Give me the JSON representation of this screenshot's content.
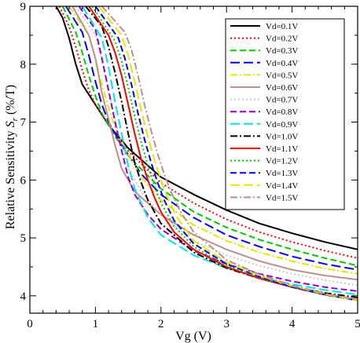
{
  "chart_data": {
    "type": "line",
    "title": "",
    "xlabel": "Vg (V)",
    "ylabel_prefix": "Relative Sensitivity ",
    "ylabel_symbol": "S",
    "ylabel_subscript": "r",
    "ylabel_suffix": " (%/T)",
    "xlim": [
      0,
      5
    ],
    "ylim": [
      3.7,
      9
    ],
    "x_ticks": [
      0,
      1,
      2,
      3,
      4,
      5
    ],
    "y_ticks": [
      4,
      5,
      6,
      7,
      8,
      9
    ],
    "grid": false,
    "legend_position": "top-right",
    "series": [
      {
        "name": "Vd=0.1V",
        "color": "#000000",
        "dash": "solid",
        "x": [
          0.4,
          0.5,
          0.6,
          0.7,
          0.8,
          1.0,
          1.2,
          1.5,
          2.0,
          2.5,
          3.0,
          3.5,
          4.0,
          4.5,
          5.0
        ],
        "y": [
          9.0,
          8.8,
          8.45,
          8.0,
          7.65,
          7.3,
          6.95,
          6.55,
          6.05,
          5.75,
          5.48,
          5.25,
          5.08,
          4.93,
          4.8
        ]
      },
      {
        "name": "Vd=0.2V",
        "color": "#ff0000",
        "dash": "dot",
        "x": [
          0.45,
          0.6,
          0.7,
          0.8,
          0.9,
          1.0,
          1.2,
          1.5,
          2.0,
          2.5,
          3.0,
          3.5,
          4.0,
          4.5,
          5.0
        ],
        "y": [
          9.0,
          8.65,
          8.3,
          7.9,
          7.55,
          7.3,
          6.95,
          6.5,
          5.95,
          5.6,
          5.32,
          5.1,
          4.93,
          4.78,
          4.65
        ]
      },
      {
        "name": "Vd=0.3V",
        "color": "#00cc00",
        "dash": "dash",
        "x": [
          0.5,
          0.7,
          0.8,
          0.9,
          1.0,
          1.1,
          1.3,
          1.6,
          2.0,
          2.5,
          3.0,
          3.5,
          4.0,
          4.5,
          5.0
        ],
        "y": [
          9.0,
          8.55,
          8.2,
          7.8,
          7.45,
          7.15,
          6.75,
          6.3,
          5.85,
          5.45,
          5.18,
          4.97,
          4.8,
          4.65,
          4.52
        ]
      },
      {
        "name": "Vd=0.4V",
        "color": "#0000ff",
        "dash": "longdash",
        "x": [
          0.55,
          0.8,
          0.9,
          1.0,
          1.1,
          1.2,
          1.4,
          1.7,
          2.0,
          2.5,
          3.0,
          3.5,
          4.0,
          4.5,
          5.0
        ],
        "y": [
          9.0,
          8.55,
          8.15,
          7.7,
          7.3,
          7.0,
          6.6,
          6.1,
          5.75,
          5.35,
          5.05,
          4.85,
          4.68,
          4.55,
          4.45
        ]
      },
      {
        "name": "Vd=0.5V",
        "color": "#e6e600",
        "dash": "dashdot",
        "x": [
          0.6,
          0.9,
          1.0,
          1.1,
          1.2,
          1.3,
          1.5,
          1.7,
          2.0,
          2.5,
          3.0,
          3.5,
          4.0,
          4.5,
          5.0
        ],
        "y": [
          9.0,
          8.5,
          8.1,
          7.65,
          7.25,
          6.9,
          6.45,
          6.05,
          5.65,
          5.22,
          4.95,
          4.75,
          4.6,
          4.47,
          4.38
        ]
      },
      {
        "name": "Vd=0.6V",
        "color": "#bc8f8f",
        "dash": "solid",
        "x": [
          0.65,
          0.9,
          1.0,
          1.05,
          1.1,
          1.2,
          1.3,
          1.4,
          1.6,
          2.0,
          2.5,
          3.0,
          3.5,
          4.0,
          4.5,
          5.0
        ],
        "y": [
          9.0,
          8.5,
          8.1,
          7.8,
          7.5,
          7.05,
          6.6,
          6.2,
          5.8,
          5.4,
          5.05,
          4.8,
          4.6,
          4.45,
          4.35,
          4.28
        ]
      },
      {
        "name": "Vd=0.7V",
        "color": "#c8c8c8",
        "dash": "dot",
        "x": [
          0.7,
          1.0,
          1.1,
          1.2,
          1.3,
          1.4,
          1.5,
          1.7,
          2.0,
          2.5,
          3.0,
          3.5,
          4.0,
          4.5,
          5.0
        ],
        "y": [
          9.0,
          8.5,
          8.05,
          7.55,
          7.05,
          6.6,
          6.2,
          5.8,
          5.4,
          4.95,
          4.7,
          4.52,
          4.38,
          4.27,
          4.18
        ]
      },
      {
        "name": "Vd=0.8V",
        "color": "#9400d3",
        "dash": "dash",
        "x": [
          0.75,
          1.0,
          1.1,
          1.2,
          1.3,
          1.4,
          1.5,
          1.6,
          1.8,
          2.0,
          2.5,
          3.0,
          3.5,
          4.0,
          4.5,
          5.0
        ],
        "y": [
          9.0,
          8.6,
          8.1,
          7.55,
          7.0,
          6.5,
          6.05,
          5.75,
          5.4,
          5.15,
          4.78,
          4.55,
          4.38,
          4.25,
          4.15,
          4.08
        ]
      },
      {
        "name": "Vd=0.9V",
        "color": "#00e5ee",
        "dash": "longdash",
        "x": [
          0.8,
          1.1,
          1.2,
          1.3,
          1.4,
          1.5,
          1.6,
          1.8,
          2.0,
          2.5,
          3.0,
          3.5,
          4.0,
          4.5,
          5.0
        ],
        "y": [
          9.0,
          8.45,
          7.95,
          7.35,
          6.8,
          6.25,
          5.85,
          5.35,
          5.05,
          4.7,
          4.48,
          4.32,
          4.2,
          4.1,
          4.02
        ]
      },
      {
        "name": "Vd=1.0V",
        "color": "#000000",
        "dash": "dashdot",
        "x": [
          0.85,
          1.1,
          1.2,
          1.3,
          1.4,
          1.5,
          1.6,
          1.7,
          1.8,
          2.0,
          2.5,
          3.0,
          3.5,
          4.0,
          4.5,
          5.0
        ],
        "y": [
          9.0,
          8.65,
          8.3,
          7.85,
          7.35,
          6.8,
          6.3,
          5.95,
          5.65,
          5.25,
          4.75,
          4.48,
          4.3,
          4.15,
          4.05,
          3.97
        ]
      },
      {
        "name": "Vd=1.1V",
        "color": "#ff0000",
        "dash": "solid",
        "x": [
          0.9,
          1.2,
          1.3,
          1.4,
          1.5,
          1.6,
          1.7,
          1.8,
          1.9,
          2.0,
          2.2,
          2.5,
          3.0,
          3.5,
          4.0,
          4.5,
          5.0
        ],
        "y": [
          9.0,
          8.5,
          8.2,
          7.8,
          7.3,
          6.8,
          6.35,
          6.0,
          5.7,
          5.45,
          5.1,
          4.8,
          4.5,
          4.3,
          4.15,
          4.02,
          3.93
        ]
      },
      {
        "name": "Vd=1.2V",
        "color": "#00cc00",
        "dash": "dot",
        "x": [
          0.95,
          1.3,
          1.4,
          1.5,
          1.6,
          1.7,
          1.8,
          1.9,
          2.0,
          2.2,
          2.5,
          3.0,
          3.5,
          4.0,
          4.5,
          5.0
        ],
        "y": [
          9.0,
          8.4,
          8.05,
          7.6,
          7.1,
          6.65,
          6.25,
          5.9,
          5.6,
          5.2,
          4.85,
          4.52,
          4.32,
          4.15,
          4.02,
          3.92
        ]
      },
      {
        "name": "Vd=1.3V",
        "color": "#0000ff",
        "dash": "dash",
        "x": [
          1.0,
          1.35,
          1.45,
          1.55,
          1.65,
          1.75,
          1.85,
          1.95,
          2.05,
          2.2,
          2.5,
          3.0,
          3.5,
          4.0,
          4.5,
          5.0
        ],
        "y": [
          9.0,
          8.45,
          8.1,
          7.65,
          7.15,
          6.7,
          6.3,
          5.95,
          5.65,
          5.3,
          4.9,
          4.55,
          4.33,
          4.15,
          4.02,
          3.92
        ]
      },
      {
        "name": "Vd=1.4V",
        "color": "#e6e600",
        "dash": "longdash",
        "x": [
          1.05,
          1.4,
          1.5,
          1.6,
          1.7,
          1.8,
          1.9,
          2.0,
          2.1,
          2.25,
          2.5,
          3.0,
          3.5,
          4.0,
          4.5,
          5.0
        ],
        "y": [
          9.0,
          8.5,
          8.15,
          7.7,
          7.2,
          6.75,
          6.35,
          6.0,
          5.7,
          5.35,
          4.95,
          4.58,
          4.35,
          4.17,
          4.03,
          3.92
        ]
      },
      {
        "name": "Vd=1.5V",
        "color": "#bc8f8f",
        "dash": "dashdot",
        "x": [
          1.1,
          1.45,
          1.55,
          1.65,
          1.75,
          1.85,
          1.95,
          2.05,
          2.15,
          2.3,
          2.5,
          3.0,
          3.5,
          4.0,
          4.5,
          5.0
        ],
        "y": [
          9.0,
          8.55,
          8.25,
          7.8,
          7.3,
          6.85,
          6.45,
          6.1,
          5.8,
          5.45,
          5.1,
          4.62,
          4.37,
          4.18,
          4.04,
          3.93
        ]
      }
    ]
  }
}
